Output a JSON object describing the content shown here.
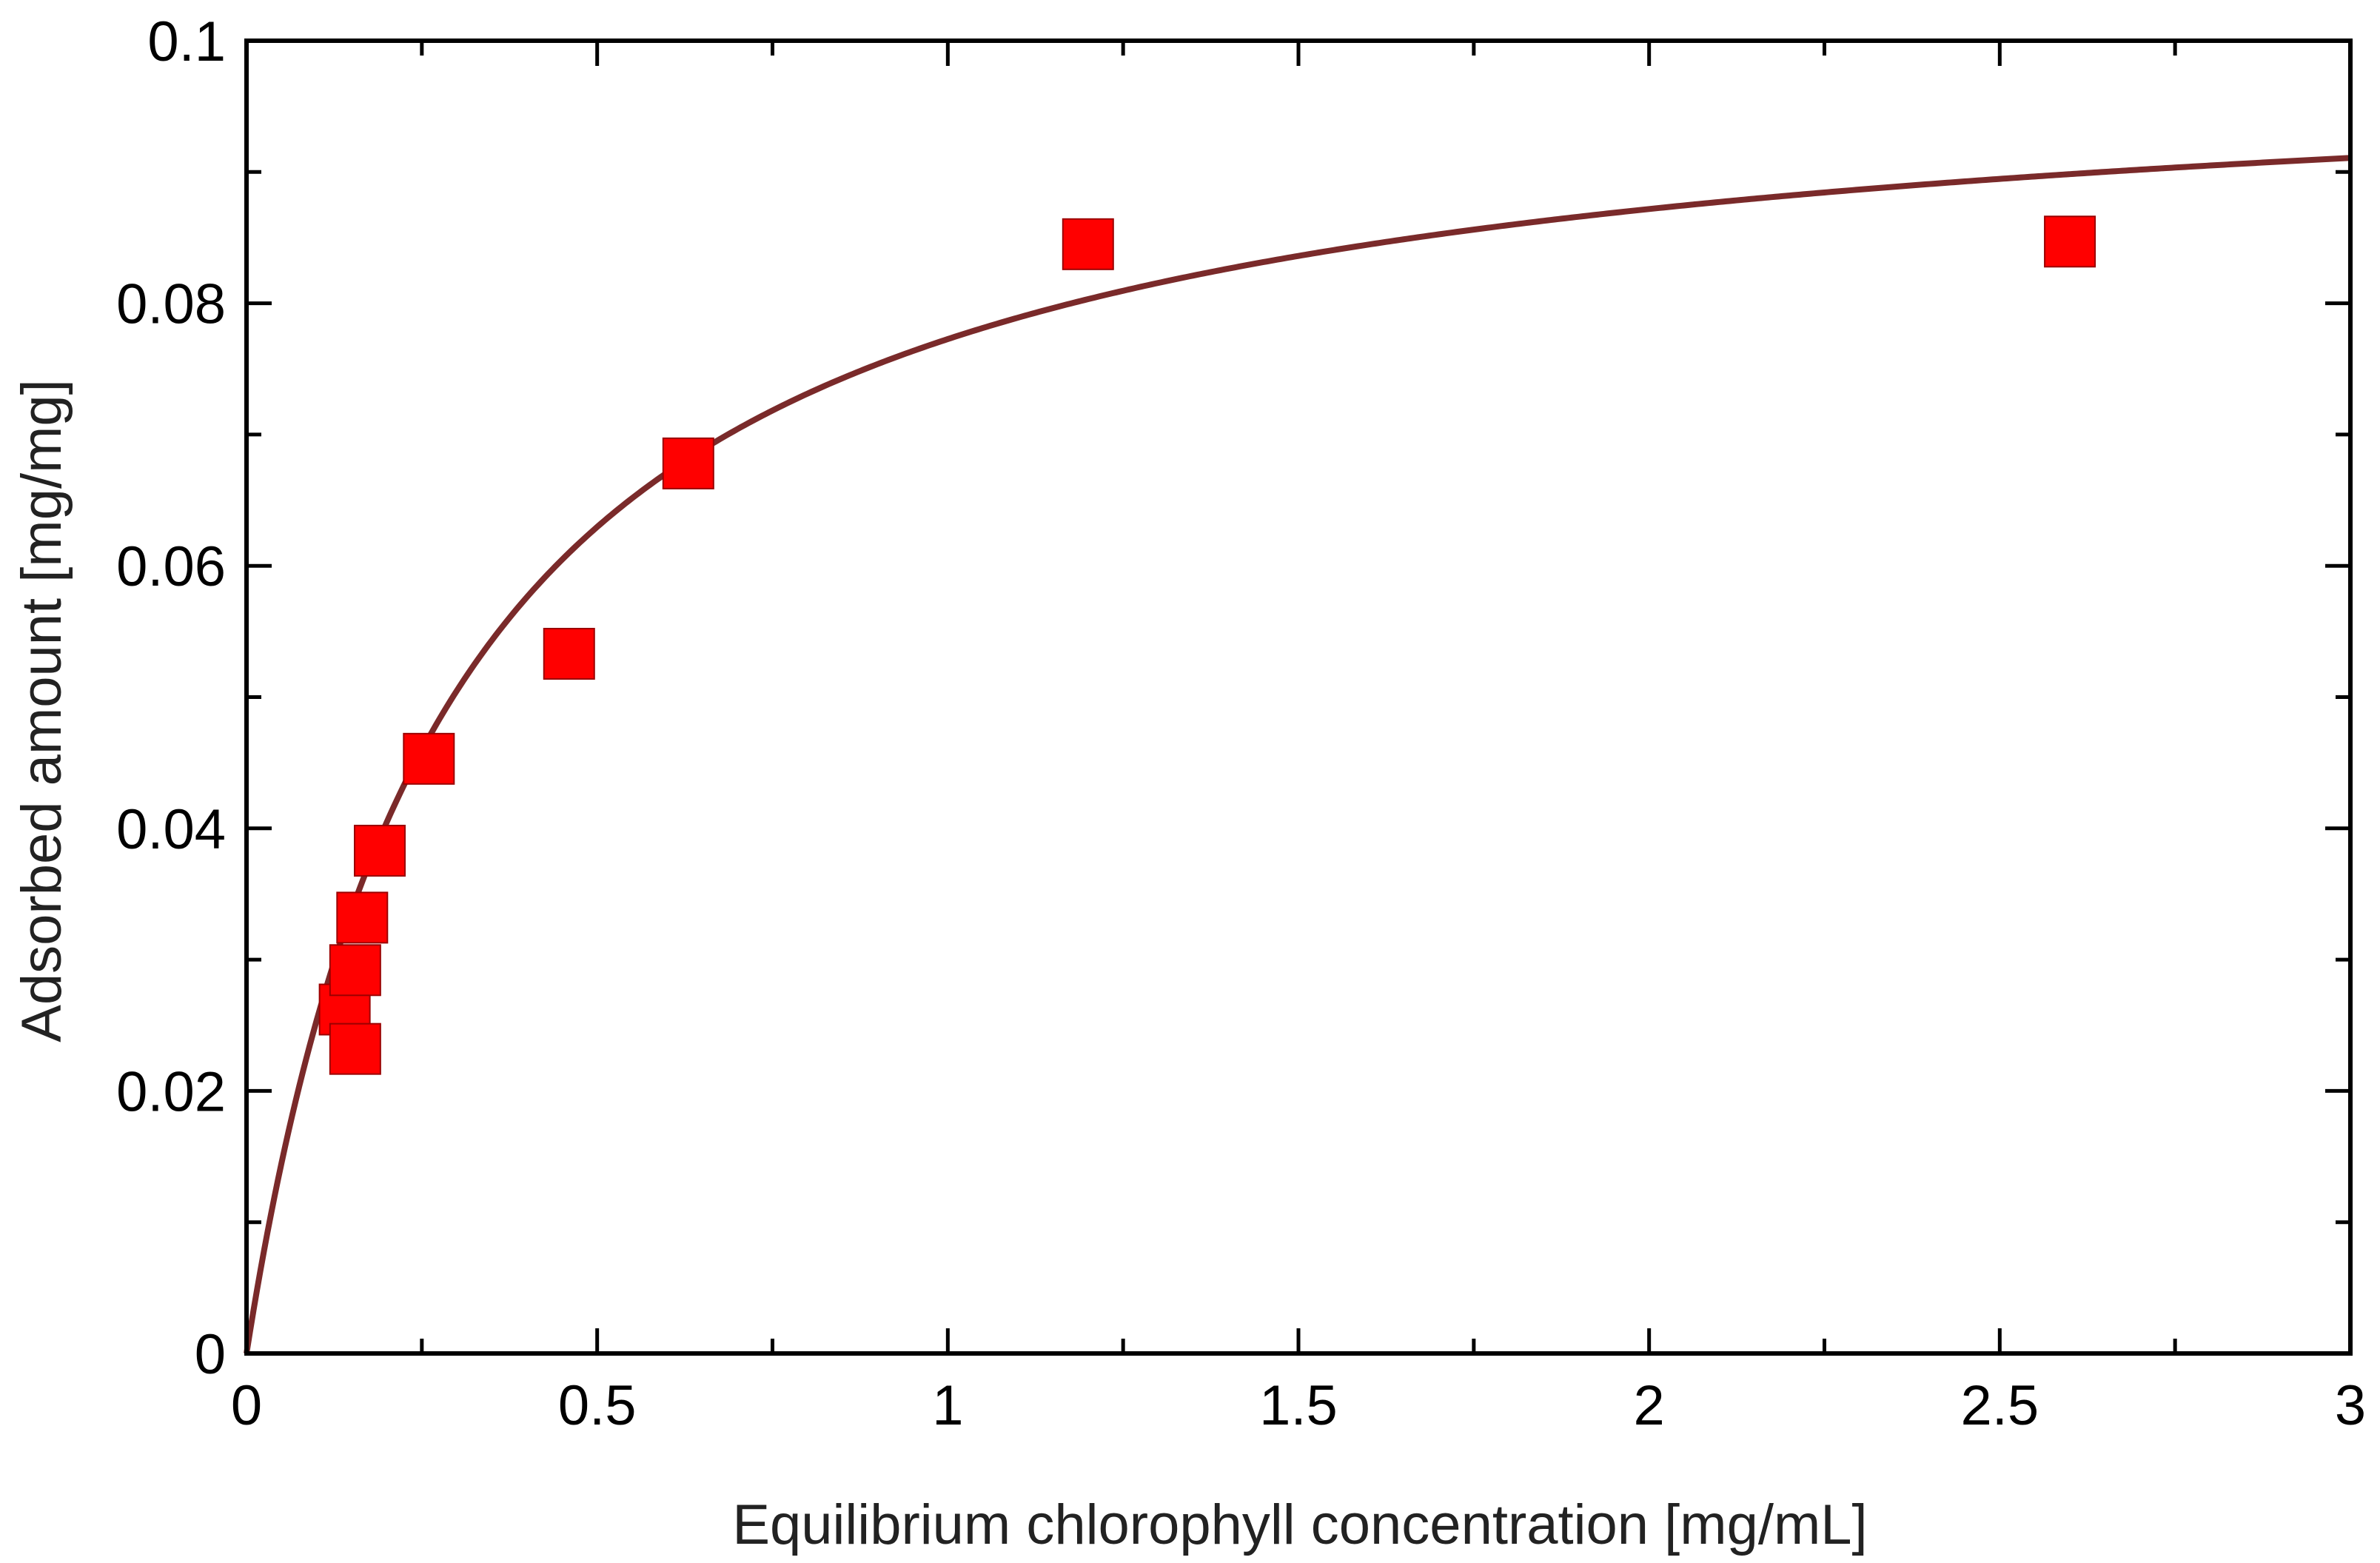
{
  "chart_data": {
    "type": "scatter",
    "title": "",
    "xlabel": "Equilibrium chlorophyll concentration [mg/mL]",
    "ylabel": "Adsorbed amount [mg/mg]",
    "xlim": [
      0,
      3
    ],
    "ylim": [
      0,
      0.1
    ],
    "x_ticks": [
      0,
      0.5,
      1,
      1.5,
      2,
      2.5,
      3
    ],
    "x_tick_labels": [
      "0",
      "0.5",
      "1",
      "1.5",
      "2",
      "2.5",
      "3"
    ],
    "y_ticks": [
      0,
      0.02,
      0.04,
      0.06,
      0.08,
      0.1
    ],
    "y_tick_labels": [
      "0",
      "0.02",
      "0.04",
      "0.06",
      "0.08",
      "0.1"
    ],
    "grid": false,
    "legend": "none",
    "series": [
      {
        "kind": "markers",
        "marker": "square",
        "color": "#ff0000",
        "x": [
          0.14,
          0.155,
          0.155,
          0.165,
          0.19,
          0.26,
          0.46,
          0.63,
          1.2,
          2.6
        ],
        "y": [
          0.0262,
          0.0232,
          0.0292,
          0.0332,
          0.0383,
          0.0453,
          0.0533,
          0.0678,
          0.0845,
          0.0847
        ]
      },
      {
        "kind": "fit-line",
        "color": "#7a2a2a",
        "model": "langmuir",
        "qmax": 0.1,
        "K": 3.4
      }
    ]
  }
}
